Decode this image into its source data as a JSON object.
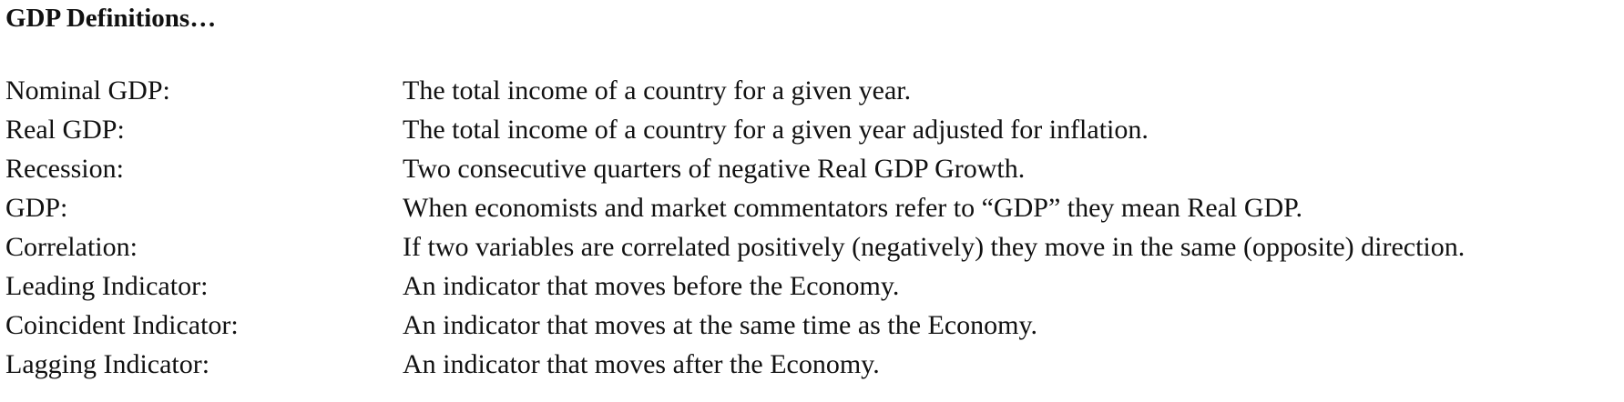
{
  "document": {
    "title": "GDP Definitions…",
    "definitions": [
      {
        "term": "Nominal GDP:",
        "definition": "The total income of a country for a given year."
      },
      {
        "term": "Real GDP:",
        "definition": "The total income of a country for a given year adjusted for inflation."
      },
      {
        "term": "Recession:",
        "definition": "Two consecutive quarters of negative Real GDP Growth."
      },
      {
        "term": "GDP:",
        "definition": "When economists and market commentators refer to “GDP” they mean Real GDP."
      },
      {
        "term": "Correlation:",
        "definition": "If two variables are correlated positively (negatively) they move in the same (opposite) direction."
      },
      {
        "term": "Leading Indicator:",
        "definition": "An indicator that moves before the Economy."
      },
      {
        "term": "Coincident Indicator:",
        "definition": "An indicator that moves at the same time as the Economy."
      },
      {
        "term": "Lagging Indicator:",
        "definition": "An indicator that moves after the Economy."
      }
    ]
  }
}
